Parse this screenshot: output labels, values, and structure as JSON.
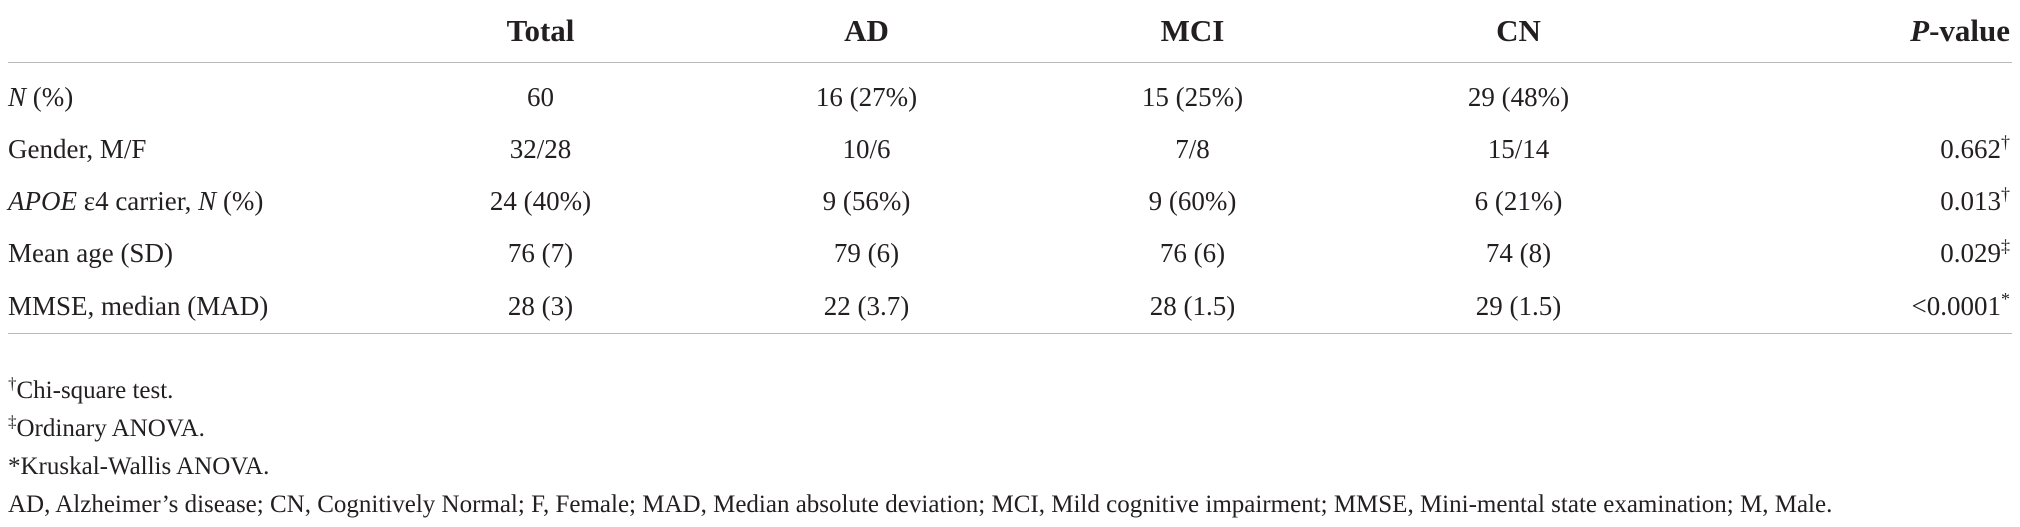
{
  "table": {
    "columns": [
      "",
      "Total",
      "AD",
      "MCI",
      "CN",
      "-value"
    ],
    "pvalue_prefix": "P",
    "rows": [
      {
        "label_italic": "N",
        "label": " (%)",
        "total": "60",
        "ad": "16 (27%)",
        "mci": "15 (25%)",
        "cn": "29 (48%)",
        "pvalue": "",
        "pvalue_mark": ""
      },
      {
        "label": "Gender, M/F",
        "total": "32/28",
        "ad": "10/6",
        "mci": "7/8",
        "cn": "15/14",
        "pvalue": "0.662",
        "pvalue_mark": "†"
      },
      {
        "label_italic": "APOE",
        "label": " ε4 carrier, ",
        "label_italic2": "N",
        "label2": " (%)",
        "total": "24 (40%)",
        "ad": "9 (56%)",
        "mci": "9 (60%)",
        "cn": "6 (21%)",
        "pvalue": "0.013",
        "pvalue_mark": "†"
      },
      {
        "label": "Mean age (SD)",
        "total": "76 (7)",
        "ad": "79 (6)",
        "mci": "76 (6)",
        "cn": "74 (8)",
        "pvalue": "0.029",
        "pvalue_mark": "‡"
      },
      {
        "label": "MMSE, median (MAD)",
        "total": "28 (3)",
        "ad": "22 (3.7)",
        "mci": "28 (1.5)",
        "cn": "29 (1.5)",
        "pvalue": "<0.0001",
        "pvalue_mark": "*"
      }
    ]
  },
  "footnotes": [
    {
      "mark": "†",
      "text": "Chi-square test."
    },
    {
      "mark": "‡",
      "text": "Ordinary ANOVA."
    },
    {
      "mark": "*",
      "text": "Kruskal-Wallis ANOVA."
    },
    {
      "mark": "",
      "text": "AD, Alzheimer’s disease; CN, Cognitively Normal; F, Female; MAD, Median absolute deviation; MCI, Mild cognitive impairment; MMSE, Mini-mental state examination; M, Male."
    }
  ]
}
